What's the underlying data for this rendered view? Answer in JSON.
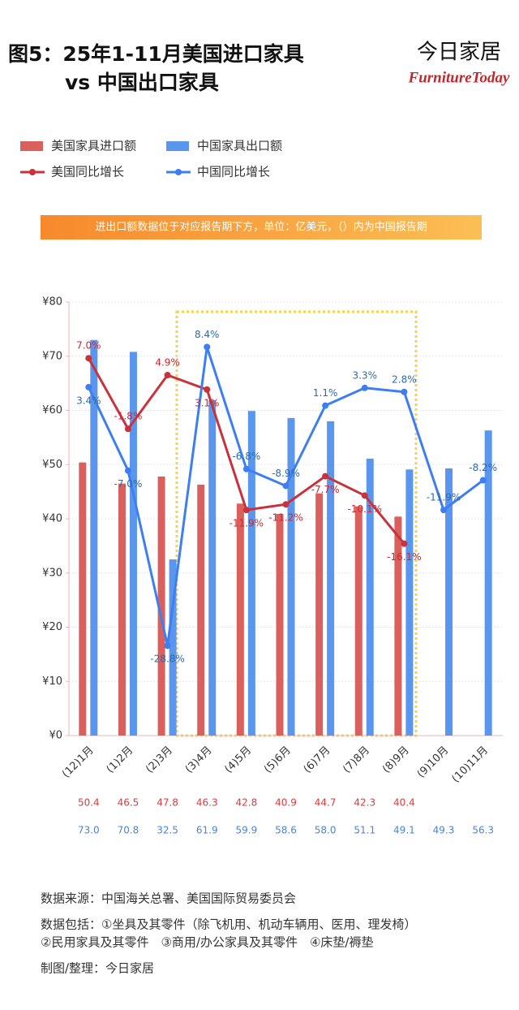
{
  "header": {
    "title_line1": "图5：25年1-11月美国进口家具",
    "title_line2": "vs 中国出口家具",
    "logo_cn": "今日家居",
    "logo_en": "FurnitureToday"
  },
  "note": "进出口额数据位于对应报告期下方，单位：亿美元，（）内为中国报告期",
  "chart_data": {
    "type": "combo",
    "categories": [
      "(12)1月",
      "(1)2月",
      "(2)3月",
      "(3)4月",
      "(4)5月",
      "(5)6月",
      "(6)7月",
      "(7)8月",
      "(8)9月",
      "(9)10月",
      "(10)11月"
    ],
    "series": [
      {
        "name": "美国家具进口额",
        "type": "bar",
        "color": "#d9605c",
        "values": [
          50.4,
          46.5,
          47.8,
          46.3,
          42.8,
          40.9,
          44.7,
          42.3,
          40.4,
          null,
          null
        ]
      },
      {
        "name": "中国家具出口额",
        "type": "bar",
        "color": "#5b96ee",
        "values": [
          73.0,
          70.8,
          32.5,
          61.9,
          59.9,
          58.6,
          58.0,
          51.1,
          49.1,
          49.3,
          56.3
        ],
        "value_labels": [
          "73.0",
          "70.8",
          "32.5",
          "61.9",
          "59.9",
          "58.6",
          "58.0",
          "51.1",
          "49.1",
          "49.3",
          "56.3"
        ]
      },
      {
        "name": "美国同比增长",
        "type": "line",
        "axis": "y2",
        "color": "#c8323a",
        "values": [
          7.0,
          -1.8,
          4.9,
          3.1,
          -11.9,
          -11.2,
          -7.7,
          -10.1,
          -16.1,
          null,
          null
        ],
        "value_labels": [
          "7.0%",
          "-1.8%",
          "4.9%",
          "3.1%",
          "-11.9%",
          "-11.2%",
          "-7.7%",
          "-10.1%",
          "-16.1%",
          null,
          null
        ]
      },
      {
        "name": "中国同比增长",
        "type": "line",
        "axis": "y2",
        "color": "#3d7ff0",
        "values": [
          3.4,
          -7.0,
          -28.8,
          8.4,
          -6.8,
          -8.9,
          1.1,
          3.3,
          2.8,
          -11.9,
          -8.2
        ],
        "value_labels": [
          "3.4%",
          "-7.0%",
          "-28.8%",
          "8.4%",
          "-6.8%",
          "-8.9%",
          "1.1%",
          "3.3%",
          "2.8%",
          "-11.9%",
          "-8.2%"
        ]
      }
    ],
    "ylim": [
      0,
      80
    ],
    "yticks": [
      {
        "value": 0,
        "label": "¥0"
      },
      {
        "value": 10,
        "label": "¥10"
      },
      {
        "value": 20,
        "label": "¥20"
      },
      {
        "value": 30,
        "label": "¥30"
      },
      {
        "value": 40,
        "label": "¥40"
      },
      {
        "value": 50,
        "label": "¥50"
      },
      {
        "value": 60,
        "label": "¥60"
      },
      {
        "value": 70,
        "label": "¥70"
      },
      {
        "value": 80,
        "label": "¥80"
      }
    ],
    "y2lim": [
      -40,
      14
    ],
    "grid": true
  },
  "footer": {
    "source": "数据来源：中国海关总署、美国国际贸易委员会",
    "includes1": "数据包括：①坐具及其零件（除飞机用、机动车辆用、医用、理发椅）",
    "includes2": "②民用家具及其零件　③商用/办公家具及其零件　④床垫/褥垫",
    "credit": "制图/整理：今日家居"
  }
}
